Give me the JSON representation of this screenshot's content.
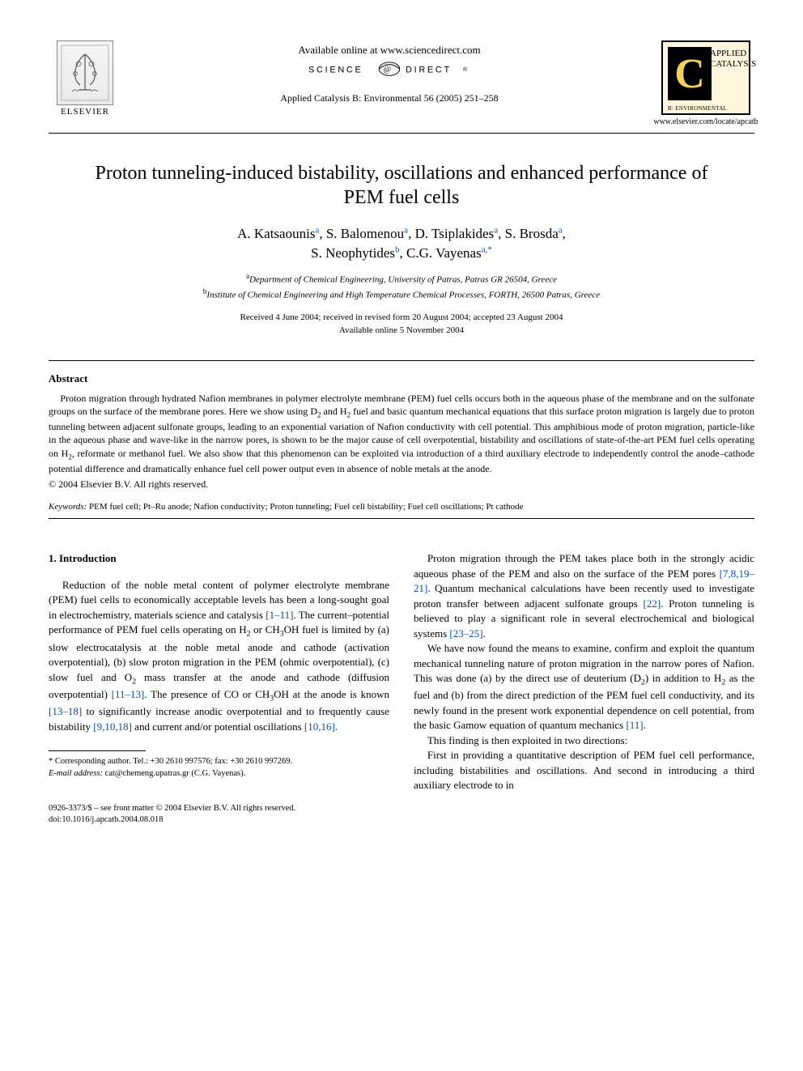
{
  "header": {
    "available_online": "Available online at www.sciencedirect.com",
    "science_direct_label": "SCIENCE DIRECT",
    "journal_ref": "Applied Catalysis B: Environmental 56 (2005) 251–258",
    "elsevier_label": "ELSEVIER",
    "journal_logo_big": "C",
    "journal_logo_text1": "APPLIED",
    "journal_logo_text2": "CATALYSIS",
    "journal_logo_sub": "B: ENVIRONMENTAL",
    "journal_url": "www.elsevier.com/locate/apcatb"
  },
  "title": "Proton tunneling-induced bistability, oscillations and enhanced performance of PEM fuel cells",
  "authors_html": "A. Katsaounis<sup><a class=\"ref-link\" href=\"#\">a</a></sup>, S. Balomenou<sup><a class=\"ref-link\" href=\"#\">a</a></sup>, D. Tsiplakides<sup><a class=\"ref-link\" href=\"#\">a</a></sup>, S. Brosda<sup><a class=\"ref-link\" href=\"#\">a</a></sup>,<br>S. Neophytides<sup><a class=\"ref-link\" href=\"#\">b</a></sup>, C.G. Vayenas<sup><a class=\"ref-link\" href=\"#\">a,</a><a class=\"ref-link\" href=\"#\">*</a></sup>",
  "affiliations": {
    "a": "Department of Chemical Engineering, University of Patras, Patras GR 26504, Greece",
    "b": "Institute of Chemical Engineering and High Temperature Chemical Processes, FORTH, 26500 Patras, Greece"
  },
  "dates": {
    "received": "Received 4 June 2004; received in revised form 20 August 2004; accepted 23 August 2004",
    "available": "Available online 5 November 2004"
  },
  "abstract": {
    "heading": "Abstract",
    "body": "Proton migration through hydrated Nafion membranes in polymer electrolyte membrane (PEM) fuel cells occurs both in the aqueous phase of the membrane and on the sulfonate groups on the surface of the membrane pores. Here we show using D₂ and H₂ fuel and basic quantum mechanical equations that this surface proton migration is largely due to proton tunneling between adjacent sulfonate groups, leading to an exponential variation of Nafion conductivity with cell potential. This amphibious mode of proton migration, particle-like in the aqueous phase and wave-like in the narrow pores, is shown to be the major cause of cell overpotential, bistability and oscillations of state-of-the-art PEM fuel cells operating on H₂, reformate or methanol fuel. We also show that this phenomenon can be exploited via introduction of a third auxiliary electrode to independently control the anode–cathode potential difference and dramatically enhance fuel cell power output even in absence of noble metals at the anode.",
    "copyright": "© 2004 Elsevier B.V. All rights reserved."
  },
  "keywords": {
    "label": "Keywords:",
    "text": " PEM fuel cell; Pt–Ru anode; Nafion conductivity; Proton tunneling; Fuel cell bistability; Fuel cell oscillations; Pt cathode"
  },
  "body": {
    "section_heading": "1. Introduction",
    "left_p1": "Reduction of the noble metal content of polymer electrolyte membrane (PEM) fuel cells to economically acceptable levels has been a long-sought goal in electrochemistry, materials science and catalysis [1–11]. The current–potential performance of PEM fuel cells operating on H₂ or CH₃OH fuel is limited by (a) slow electrocatalysis at the noble metal anode and cathode (activation overpotential), (b) slow proton migration in the PEM (ohmic overpotential), (c) slow fuel and O₂ mass transfer at the anode and cathode (diffusion overpotential) [11–13]. The presence of CO or CH₃OH at the anode is known [13–18] to significantly increase anodic overpotential and to frequently cause bistability [9,10,18] and current and/or potential oscillations [10,16].",
    "right_p1": "Proton migration through the PEM takes place both in the strongly acidic aqueous phase of the PEM and also on the surface of the PEM pores [7,8,19–21]. Quantum mechanical calculations have been recently used to investigate proton transfer between adjacent sulfonate groups [22]. Proton tunneling is believed to play a significant role in several electrochemical and biological systems [23–25].",
    "right_p2": "We have now found the means to examine, confirm and exploit the quantum mechanical tunneling nature of proton migration in the narrow pores of Nafion. This was done (a) by the direct use of deuterium (D₂) in addition to H₂ as the fuel and (b) from the direct prediction of the PEM fuel cell conductivity, and its newly found in the present work exponential dependence on cell potential, from the basic Gamow equation of quantum mechanics [11].",
    "right_p3": "This finding is then exploited in two directions:",
    "right_p4": "First in providing a quantitative description of PEM fuel cell performance, including bistabilities and oscillations. And second in introducing a third auxiliary electrode to in"
  },
  "footnote": {
    "corr": "* Corresponding author. Tel.: +30 2610 997576; fax: +30 2610 997269.",
    "email_label": "E-mail address:",
    "email": " cat@chemeng.upatras.gr (C.G. Vayenas)."
  },
  "bottom": {
    "issn": "0926-3373/$ – see front matter © 2004 Elsevier B.V. All rights reserved.",
    "doi": "doi:10.1016/j.apcatb.2004.08.018"
  },
  "colors": {
    "link": "#0a4aa8",
    "text": "#000000",
    "background": "#ffffff",
    "journal_bg": "#fff6dd",
    "journal_c_bg": "#000000",
    "journal_c_fg": "#f0d060"
  }
}
